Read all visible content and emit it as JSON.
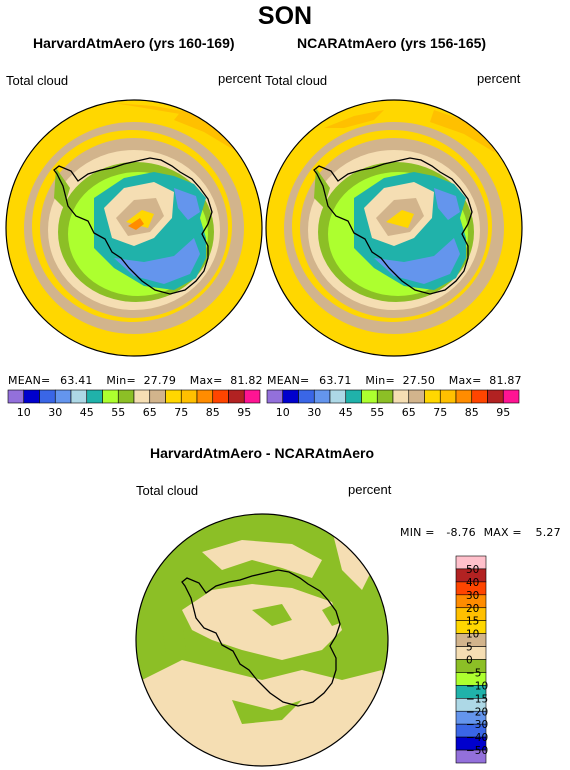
{
  "season": "SON",
  "colors": {
    "c_lt10": "#9370DB",
    "c_10_20": "#0000CD",
    "c_20_30": "#3A66E6",
    "c_30_40": "#6495ED",
    "c_40_45": "#ADD8E6",
    "c_45_50": "#20B2AA",
    "c_50_55": "#ADFF2F",
    "c_55_60": "#8CBF26",
    "c_60_65": "#F5DEB3",
    "c_65_70": "#D2B48C",
    "c_70_75": "#FFD700",
    "c_75_80": "#FFC000",
    "c_80_85": "#FF8C00",
    "c_85_90": "#FF4500",
    "c_90_95": "#B22222",
    "c_gt95": "#FF1493",
    "d_lt50": "#9370DB",
    "d_m50_m40": "#0000CD",
    "d_m40_m30": "#3A66E6",
    "d_m30_m20": "#6495ED",
    "d_m20_m15": "#ADD8E6",
    "d_m15_m10": "#20B2AA",
    "d_m10_m5": "#ADFF2F",
    "d_m5_0": "#8CBF26",
    "d_0_5": "#F5DEB3",
    "d_5_10": "#D2B48C",
    "d_10_15": "#FFD700",
    "d_15_20": "#FFC000",
    "d_20_30": "#FF8C00",
    "d_30_40": "#FF4500",
    "d_40_50": "#B22222",
    "d_gt50": "#FFC0CB"
  },
  "chart_data": [
    {
      "type": "heatmap",
      "title": "HarvardAtmAero (yrs 160-169)",
      "variable": "Total cloud",
      "units": "percent",
      "projection": "south polar stereographic",
      "stats": {
        "mean_label": "MEAN=",
        "mean": "63.41",
        "min_label": "Min=",
        "min": "27.79",
        "max_label": "Max=",
        "max": "81.82"
      },
      "colorbar_levels": [
        10,
        20,
        30,
        40,
        45,
        50,
        55,
        60,
        65,
        70,
        75,
        80,
        85,
        90,
        95
      ],
      "colorbar_tick_labels": [
        "10",
        "30",
        "45",
        "55",
        "65",
        "75",
        "85",
        "95"
      ]
    },
    {
      "type": "heatmap",
      "title": "NCARAtmAero (yrs 156-165)",
      "variable": "Total cloud",
      "units": "percent",
      "projection": "south polar stereographic",
      "stats": {
        "mean_label": "MEAN=",
        "mean": "63.71",
        "min_label": "Min=",
        "min": "27.50",
        "max_label": "Max=",
        "max": "81.87"
      },
      "colorbar_levels": [
        10,
        20,
        30,
        40,
        45,
        50,
        55,
        60,
        65,
        70,
        75,
        80,
        85,
        90,
        95
      ],
      "colorbar_tick_labels": [
        "10",
        "30",
        "45",
        "55",
        "65",
        "75",
        "85",
        "95"
      ]
    },
    {
      "type": "heatmap",
      "title": "HarvardAtmAero - NCARAtmAero",
      "variable": "Total cloud",
      "units": "percent",
      "projection": "south polar stereographic",
      "stats": {
        "min_label": "MIN =",
        "min": "-8.76",
        "max_label": "MAX =",
        "max": "5.27"
      },
      "colorbar_levels": [
        -50,
        -40,
        -30,
        -20,
        -15,
        -10,
        -5,
        0,
        5,
        10,
        15,
        20,
        30,
        40,
        50
      ],
      "colorbar_tick_labels": [
        "50",
        "40",
        "30",
        "20",
        "15",
        "10",
        "5",
        "0",
        "−5",
        "−10",
        "−15",
        "−20",
        "−30",
        "−40",
        "−50"
      ]
    }
  ]
}
